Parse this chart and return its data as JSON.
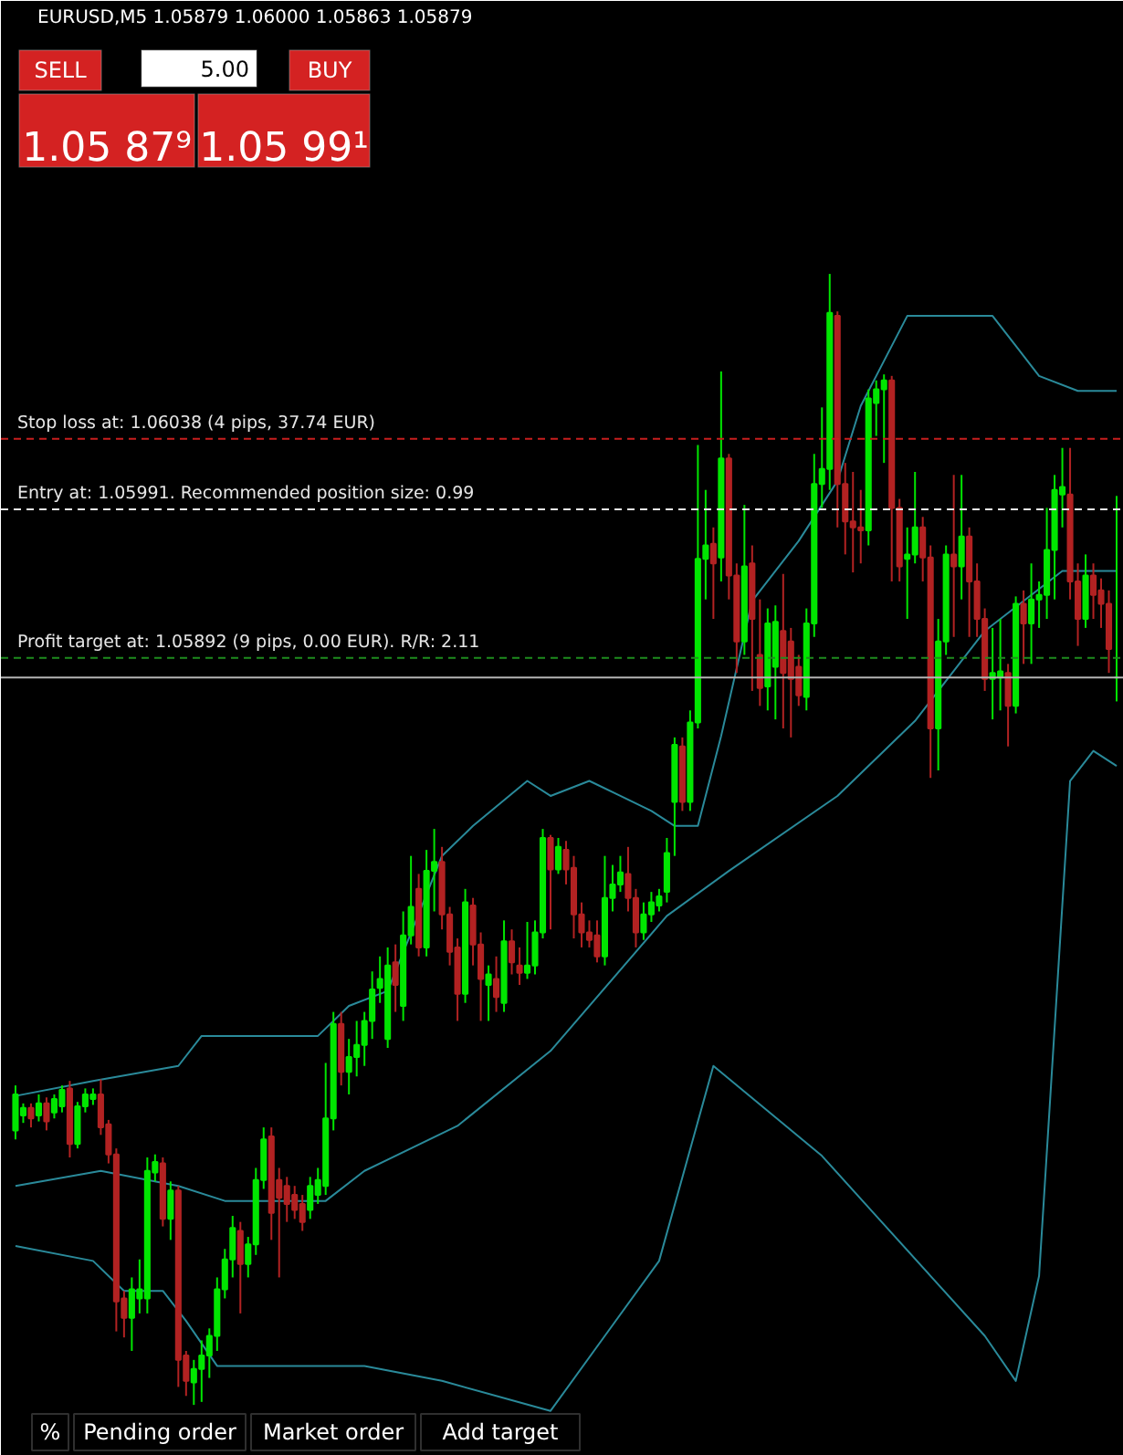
{
  "chart_data": {
    "type": "candlestick",
    "title": "EURUSD,M5  1.05879 1.06000 1.05863 1.05879",
    "categories": [
      null,
      null,
      null,
      null,
      null,
      null,
      null,
      null,
      null,
      null,
      null,
      null,
      null,
      null,
      null,
      null,
      null,
      null,
      null,
      null,
      null,
      null,
      null,
      null,
      null,
      null,
      null,
      null,
      null,
      null,
      null,
      null,
      null,
      null,
      null,
      null,
      null,
      null,
      null,
      null,
      null,
      null,
      null,
      null,
      null,
      null,
      null,
      null,
      null,
      null,
      null,
      null,
      null,
      null,
      null,
      null,
      null,
      null,
      null,
      null,
      null,
      null,
      null,
      null,
      null,
      null,
      null,
      null,
      null,
      null,
      null,
      null,
      null,
      null,
      null,
      null,
      null,
      null,
      null,
      null,
      null,
      null,
      null,
      null,
      null,
      null,
      null,
      null,
      null,
      null,
      null,
      null,
      null,
      null,
      null,
      null,
      null,
      null,
      null,
      null,
      null,
      null,
      null,
      null,
      null,
      null,
      null,
      null,
      null,
      null,
      null,
      null,
      null,
      null,
      null,
      null,
      null,
      null,
      null,
      null,
      null,
      null,
      null,
      null,
      null,
      null,
      null,
      null,
      null,
      null,
      null,
      null,
      null,
      null,
      null,
      null,
      null,
      null,
      null,
      null,
      null,
      null,
      null
    ],
    "ohlc": [
      [
        1.05577,
        1.05607,
        1.05571,
        1.05601
      ],
      [
        1.05587,
        1.05595,
        1.05582,
        1.05592
      ],
      [
        1.05592,
        1.05595,
        1.05579,
        1.05585
      ],
      [
        1.05587,
        1.05601,
        1.05583,
        1.05595
      ],
      [
        1.05595,
        1.05599,
        1.05577,
        1.05583
      ],
      [
        1.05589,
        1.05601,
        1.05585,
        1.05598
      ],
      [
        1.05593,
        1.05607,
        1.05589,
        1.05604
      ],
      [
        1.05605,
        1.0561,
        1.05559,
        1.05568
      ],
      [
        1.05568,
        1.05596,
        1.05565,
        1.05593
      ],
      [
        1.05593,
        1.05605,
        1.05589,
        1.05601
      ],
      [
        1.05598,
        1.05605,
        1.05594,
        1.05601
      ],
      [
        1.05601,
        1.05611,
        1.05574,
        1.05579
      ],
      [
        1.05581,
        1.05584,
        1.05555,
        1.05561
      ],
      [
        1.05561,
        1.05565,
        1.05443,
        1.05463
      ],
      [
        1.05465,
        1.0547,
        1.05439,
        1.05452
      ],
      [
        1.05452,
        1.05479,
        1.0543,
        1.05471
      ],
      [
        1.05465,
        1.05491,
        1.05455,
        1.05471
      ],
      [
        1.05465,
        1.05559,
        1.05455,
        1.0555
      ],
      [
        1.05549,
        1.05561,
        1.05543,
        1.05556
      ],
      [
        1.05555,
        1.05559,
        1.05513,
        1.05518
      ],
      [
        1.05518,
        1.05543,
        1.05504,
        1.05537
      ],
      [
        1.05537,
        1.0554,
        1.05406,
        1.05424
      ],
      [
        1.05427,
        1.0543,
        1.054,
        1.0541
      ],
      [
        1.05409,
        1.05424,
        1.05394,
        1.05418
      ],
      [
        1.05418,
        1.05437,
        1.05396,
        1.05427
      ],
      [
        1.05427,
        1.05445,
        1.05412,
        1.0544
      ],
      [
        1.0544,
        1.05479,
        1.0543,
        1.05471
      ],
      [
        1.05471,
        1.05498,
        1.05465,
        1.05491
      ],
      [
        1.05491,
        1.0552,
        1.05479,
        1.05512
      ],
      [
        1.0551,
        1.05516,
        1.05455,
        1.05488
      ],
      [
        1.05488,
        1.05506,
        1.05479,
        1.05501
      ],
      [
        1.05501,
        1.05552,
        1.05494,
        1.05544
      ],
      [
        1.05544,
        1.05579,
        1.05538,
        1.05571
      ],
      [
        1.05573,
        1.05579,
        1.05504,
        1.05522
      ],
      [
        1.05544,
        1.05552,
        1.05479,
        1.05532
      ],
      [
        1.0554,
        1.05546,
        1.05516,
        1.05528
      ],
      [
        1.05534,
        1.0554,
        1.05518,
        1.05524
      ],
      [
        1.05528,
        1.05534,
        1.0551,
        1.05516
      ],
      [
        1.05524,
        1.05546,
        1.05518,
        1.0554
      ],
      [
        1.05534,
        1.05552,
        1.05528,
        1.05544
      ],
      [
        1.0554,
        1.05622,
        1.05534,
        1.05585
      ],
      [
        1.05585,
        1.05656,
        1.05577,
        1.05648
      ],
      [
        1.05648,
        1.05656,
        1.05607,
        1.05616
      ],
      [
        1.05616,
        1.05638,
        1.05601,
        1.05626
      ],
      [
        1.05626,
        1.0565,
        1.05613,
        1.05634
      ],
      [
        1.05634,
        1.05656,
        1.0562,
        1.0565
      ],
      [
        1.0565,
        1.05683,
        1.05638,
        1.05671
      ],
      [
        1.05672,
        1.05693,
        1.05662,
        1.05678
      ],
      [
        1.05638,
        1.05699,
        1.05632,
        1.05687
      ],
      [
        1.05689,
        1.05701,
        1.05656,
        1.05674
      ],
      [
        1.0566,
        1.05723,
        1.0565,
        1.05707
      ],
      [
        1.05707,
        1.0576,
        1.05701,
        1.05726
      ],
      [
        1.05738,
        1.05748,
        1.05693,
        1.05699
      ],
      [
        1.05699,
        1.05764,
        1.05693,
        1.0575
      ],
      [
        1.0575,
        1.05778,
        1.05723,
        1.05756
      ],
      [
        1.05756,
        1.05766,
        1.05711,
        1.05721
      ],
      [
        1.05721,
        1.05726,
        1.05687,
        1.05696
      ],
      [
        1.05699,
        1.05705,
        1.0565,
        1.05668
      ],
      [
        1.05668,
        1.05738,
        1.05662,
        1.05729
      ],
      [
        1.05727,
        1.05732,
        1.05687,
        1.05701
      ],
      [
        1.05701,
        1.05709,
        1.0565,
        1.05678
      ],
      [
        1.05674,
        1.05687,
        1.0565,
        1.05681
      ],
      [
        1.05678,
        1.05693,
        1.05656,
        1.05666
      ],
      [
        1.05662,
        1.05717,
        1.05656,
        1.05703
      ],
      [
        1.05703,
        1.05711,
        1.05681,
        1.05689
      ],
      [
        1.05687,
        1.05699,
        1.05674,
        1.05682
      ],
      [
        1.05682,
        1.05716,
        1.05678,
        1.05687
      ],
      [
        1.05687,
        1.05717,
        1.05681,
        1.05709
      ],
      [
        1.05709,
        1.05778,
        1.05705,
        1.05772
      ],
      [
        1.05772,
        1.05774,
        1.05711,
        1.05751
      ],
      [
        1.05751,
        1.05772,
        1.05748,
        1.05766
      ],
      [
        1.05764,
        1.0577,
        1.05741,
        1.05751
      ],
      [
        1.05752,
        1.0576,
        1.05705,
        1.05721
      ],
      [
        1.05721,
        1.05729,
        1.05699,
        1.05709
      ],
      [
        1.05709,
        1.05717,
        1.05699,
        1.05704
      ],
      [
        1.05707,
        1.05717,
        1.05689,
        1.05693
      ],
      [
        1.05693,
        1.0576,
        1.05687,
        1.05732
      ],
      [
        1.05732,
        1.05754,
        1.05723,
        1.05741
      ],
      [
        1.05741,
        1.0576,
        1.05736,
        1.05749
      ],
      [
        1.05748,
        1.05766,
        1.05723,
        1.05732
      ],
      [
        1.05732,
        1.05738,
        1.05699,
        1.05709
      ],
      [
        1.05709,
        1.05729,
        1.05704,
        1.05721
      ],
      [
        1.05721,
        1.05736,
        1.05716,
        1.05729
      ],
      [
        1.05727,
        1.05738,
        1.05723,
        1.05733
      ],
      [
        1.05736,
        1.05772,
        1.05729,
        1.05762
      ],
      [
        1.05796,
        1.05839,
        1.0576,
        1.05834
      ],
      [
        1.05833,
        1.05839,
        1.0579,
        1.05796
      ],
      [
        1.05796,
        1.05857,
        1.0579,
        1.05849
      ],
      [
        1.05849,
        1.06034,
        1.05845,
        1.05958
      ],
      [
        1.05958,
        1.06004,
        1.05931,
        1.05967
      ],
      [
        1.05968,
        1.05979,
        1.05918,
        1.05955
      ],
      [
        1.05959,
        1.06083,
        1.05943,
        1.06025
      ],
      [
        1.06025,
        1.06028,
        1.05931,
        1.05947
      ],
      [
        1.05947,
        1.05955,
        1.05882,
        1.05903
      ],
      [
        1.05903,
        1.05994,
        1.05894,
        1.05953
      ],
      [
        1.05955,
        1.05967,
        1.0587,
        1.05918
      ],
      [
        1.05894,
        1.05931,
        1.0586,
        1.05872
      ],
      [
        1.05873,
        1.05925,
        1.05857,
        1.05915
      ],
      [
        1.05886,
        1.05927,
        1.05851,
        1.05916
      ],
      [
        1.0591,
        1.05948,
        1.05845,
        1.05882
      ],
      [
        1.05903,
        1.05912,
        1.05839,
        1.05878
      ],
      [
        1.05886,
        1.05894,
        1.0586,
        1.05867
      ],
      [
        1.05866,
        1.05925,
        1.05857,
        1.05915
      ],
      [
        1.05915,
        1.06028,
        1.05906,
        1.06008
      ],
      [
        1.06008,
        1.06059,
        1.05992,
        1.06018
      ],
      [
        1.06018,
        1.06148,
        1.06004,
        1.06122
      ],
      [
        1.0612,
        1.06123,
        1.05979,
        1.06008
      ],
      [
        1.06008,
        1.06022,
        1.05961,
        1.05983
      ],
      [
        1.05983,
        1.06016,
        1.05949,
        1.05979
      ],
      [
        1.05979,
        1.06004,
        1.05955,
        1.05977
      ],
      [
        1.05977,
        1.06071,
        1.05967,
        1.06065
      ],
      [
        1.06062,
        1.06077,
        1.0604,
        1.06071
      ],
      [
        1.06071,
        1.06081,
        1.06022,
        1.06077
      ],
      [
        1.06077,
        1.0608,
        1.05943,
        1.05992
      ],
      [
        1.05992,
        1.05998,
        1.05943,
        1.05953
      ],
      [
        1.05958,
        1.05979,
        1.05918,
        1.05961
      ],
      [
        1.05961,
        1.06016,
        1.05955,
        1.05979
      ],
      [
        1.05979,
        1.05986,
        1.05943,
        1.05959
      ],
      [
        1.05959,
        1.05967,
        1.05812,
        1.05845
      ],
      [
        1.05845,
        1.05918,
        1.05817,
        1.05903
      ],
      [
        1.05903,
        1.05967,
        1.05894,
        1.05961
      ],
      [
        1.05961,
        1.06014,
        1.05906,
        1.05953
      ],
      [
        1.05953,
        1.06014,
        1.05931,
        1.05973
      ],
      [
        1.05973,
        1.05979,
        1.05906,
        1.05943
      ],
      [
        1.05943,
        1.05955,
        1.05906,
        1.05918
      ],
      [
        1.05918,
        1.05925,
        1.0587,
        1.05878
      ],
      [
        1.05878,
        1.05912,
        1.05851,
        1.05882
      ],
      [
        1.05879,
        1.05918,
        1.05857,
        1.05883
      ],
      [
        1.05882,
        1.05888,
        1.05833,
        1.0586
      ],
      [
        1.0586,
        1.05933,
        1.05855,
        1.05928
      ],
      [
        1.05928,
        1.05937,
        1.05888,
        1.05915
      ],
      [
        1.05915,
        1.05955,
        1.05888,
        1.05931
      ],
      [
        1.05931,
        1.05943,
        1.05912,
        1.05934
      ],
      [
        1.05934,
        1.05992,
        1.05918,
        1.05964
      ],
      [
        1.05964,
        1.06014,
        1.05931,
        1.06004
      ],
      [
        1.06001,
        1.06032,
        1.05979,
        1.06006
      ],
      [
        1.06001,
        1.06032,
        1.05931,
        1.05943
      ],
      [
        1.05943,
        1.05955,
        1.059,
        1.05918
      ],
      [
        1.05918,
        1.05961,
        1.05912,
        1.05947
      ],
      [
        1.05947,
        1.05955,
        1.05918,
        1.05934
      ],
      [
        1.05937,
        1.05945,
        1.05912,
        1.05928
      ],
      [
        1.05928,
        1.05937,
        1.05882,
        1.05898
      ],
      [
        1.05879,
        1.06,
        1.05863,
        1.05879
      ]
    ],
    "series": [
      {
        "type": "line",
        "color": "#2a8a9a",
        "values": [
          1.056,
          null,
          null,
          null,
          null,
          null,
          null,
          null,
          null,
          null,
          1.0561,
          null,
          null,
          null,
          null,
          null,
          null,
          null,
          null,
          null,
          null,
          1.0562,
          null,
          null,
          1.0564,
          null,
          null,
          null,
          null,
          null,
          null,
          1.0564,
          null,
          null,
          null,
          null,
          null,
          null,
          null,
          1.0564,
          null,
          null,
          null,
          1.0566,
          null,
          null,
          null,
          null,
          1.0567,
          null,
          null,
          null,
          null,
          null,
          null,
          1.0576,
          null,
          null,
          null,
          1.0578,
          null,
          null,
          null,
          null,
          null,
          null,
          1.0581,
          null,
          null,
          1.058,
          null,
          null,
          null,
          null,
          1.0581,
          null,
          null,
          null,
          1.058,
          null,
          null,
          null,
          1.0579,
          null,
          null,
          1.0578,
          null,
          null,
          1.0578,
          null,
          null,
          1.0584,
          null,
          null,
          null,
          1.0593,
          null,
          null,
          null,
          null,
          null,
          1.0597,
          null,
          null,
          null,
          null,
          1.0601,
          null,
          null,
          1.0606,
          null,
          null,
          1.0609,
          null,
          null,
          1.0612,
          null,
          null,
          1.0612,
          null,
          null,
          null,
          1.0612,
          null,
          null,
          null,
          1.0612,
          null,
          null,
          1.061,
          null,
          null,
          1.0608,
          null,
          null,
          null,
          null,
          1.0607,
          null,
          null,
          null,
          null,
          1.0607
        ]
      },
      {
        "type": "line",
        "color": "#2a8a9a",
        "values": [
          1.0554,
          null,
          null,
          null,
          null,
          null,
          null,
          null,
          null,
          null,
          null,
          1.0555,
          null,
          null,
          null,
          null,
          null,
          null,
          null,
          null,
          null,
          1.0554,
          null,
          null,
          null,
          null,
          null,
          1.0553,
          null,
          null,
          null,
          null,
          null,
          1.0553,
          null,
          null,
          null,
          null,
          null,
          null,
          1.0553,
          null,
          null,
          null,
          null,
          1.0555,
          null,
          null,
          null,
          null,
          null,
          null,
          null,
          null,
          null,
          null,
          null,
          1.0558,
          null,
          null,
          null,
          null,
          null,
          null,
          null,
          null,
          null,
          null,
          null,
          1.0563,
          null,
          null,
          null,
          null,
          null,
          null,
          null,
          null,
          null,
          null,
          null,
          null,
          null,
          null,
          1.0572,
          null,
          null,
          null,
          null,
          null,
          null,
          null,
          1.0575,
          null,
          null,
          null,
          null,
          null,
          null,
          null,
          null,
          null,
          null,
          null,
          null,
          null,
          1.058,
          null,
          null,
          null,
          null,
          null,
          null,
          null,
          null,
          null,
          1.0585,
          null,
          null,
          null,
          null,
          null,
          null,
          null,
          null,
          1.0591,
          null,
          null,
          null,
          null,
          null,
          null,
          null,
          null,
          null,
          1.0595,
          null,
          null,
          null,
          null,
          null,
          null,
          1.0595
        ]
      },
      {
        "type": "line",
        "color": "#2a8a9a",
        "values": [
          1.055,
          null,
          null,
          null,
          null,
          null,
          null,
          null,
          null,
          null,
          1.0549,
          null,
          null,
          null,
          1.0547,
          null,
          null,
          null,
          null,
          1.0547,
          null,
          null,
          1.0545,
          null,
          null,
          null,
          1.0542,
          null,
          null,
          null,
          null,
          1.0542,
          null,
          null,
          null,
          null,
          null,
          null,
          null,
          1.0542,
          null,
          null,
          null,
          null,
          null,
          1.0542,
          null,
          null,
          null,
          null,
          null,
          null,
          null,
          null,
          null,
          1.0541,
          null,
          null,
          null,
          null,
          null,
          null,
          null,
          null,
          null,
          null,
          null,
          null,
          null,
          1.0539,
          null,
          null,
          null,
          null,
          null,
          null,
          1.0544,
          null,
          null,
          null,
          null,
          null,
          null,
          1.0549,
          null,
          null,
          null,
          null,
          null,
          null,
          1.0562,
          null,
          null,
          null,
          null,
          null,
          null,
          1.0559,
          null,
          null,
          null,
          null,
          null,
          null,
          1.0556,
          null,
          null,
          null,
          null,
          null,
          null,
          1.0552,
          null,
          null,
          null,
          null,
          null,
          null,
          1.0548,
          null,
          null,
          null,
          null,
          null,
          null,
          1.0544,
          null,
          null,
          null,
          1.0541,
          null,
          null,
          1.0548,
          null,
          null,
          null,
          1.0581,
          null,
          null,
          1.0583,
          null,
          null,
          1.0582
        ]
      }
    ],
    "ref_lines": [
      {
        "axis": "y",
        "value": 1.06038,
        "label": "Stop loss at: 1.06038 (4 pips, 37.74 EUR)",
        "color": "#c81e1e",
        "line_style": "dashed"
      },
      {
        "axis": "y",
        "value": 1.05991,
        "label": "Entry at: 1.05991. Recommended position size: 0.99",
        "color": "#e8e8e8",
        "line_style": "dashed"
      },
      {
        "axis": "y",
        "value": 1.05892,
        "label": "Profit target at: 1.05892 (9 pips, 0.00 EUR). R/R: 2.11",
        "color": "#1e8c1e",
        "line_style": "dashed"
      },
      {
        "axis": "y",
        "value": 1.05879,
        "label": null,
        "color": "#b4b4b4",
        "line_style": "solid"
      }
    ],
    "annotations": [
      "SELL",
      "5.00",
      "BUY",
      "1.05 87⁹",
      "1.05 99¹",
      "%",
      "Pending order",
      "Market order",
      "Add target"
    ],
    "ylim": [
      1.0536,
      1.0633
    ],
    "tick_labels": false
  }
}
